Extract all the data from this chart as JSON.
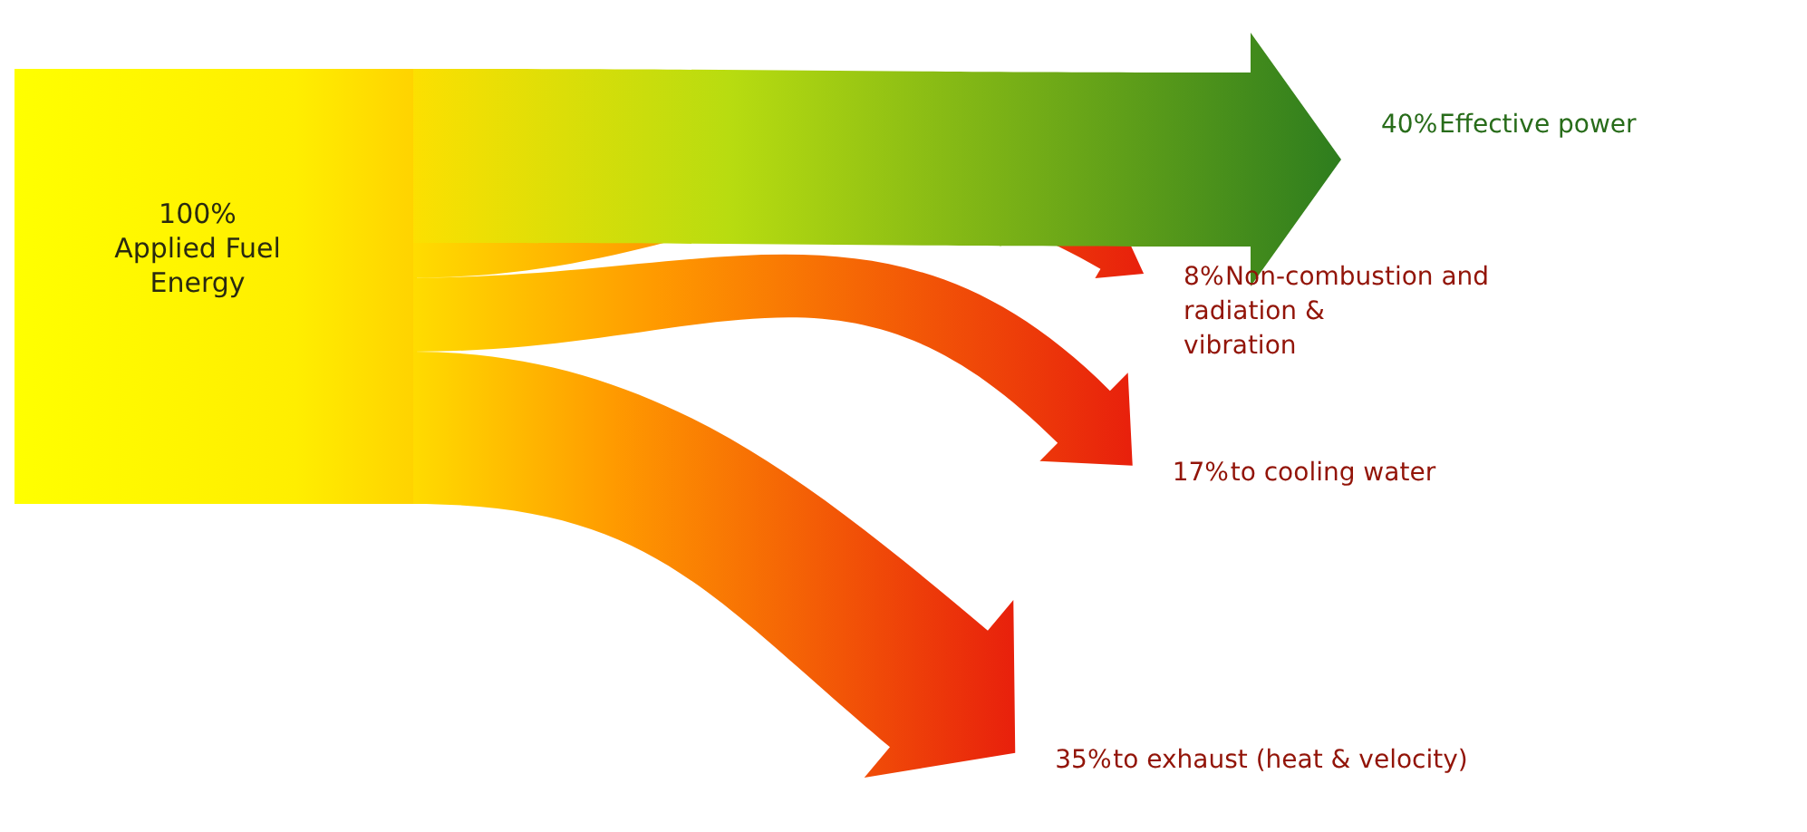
{
  "chart_data": {
    "type": "other",
    "categories": [
      "Effective power",
      "Non-combustion and radiation & vibration",
      "to cooling water",
      "to exhaust (heat & velocity)"
    ],
    "values": [
      40,
      8,
      17,
      35
    ],
    "value_labels": [
      "40%",
      "8%",
      "17%",
      "35%"
    ],
    "colors": [
      "#2e7d1e",
      "#e8200c",
      "#e8200c",
      "#e8200c"
    ],
    "annotations": [
      "100%\nApplied Fuel\nEnergy"
    ]
  }
}
